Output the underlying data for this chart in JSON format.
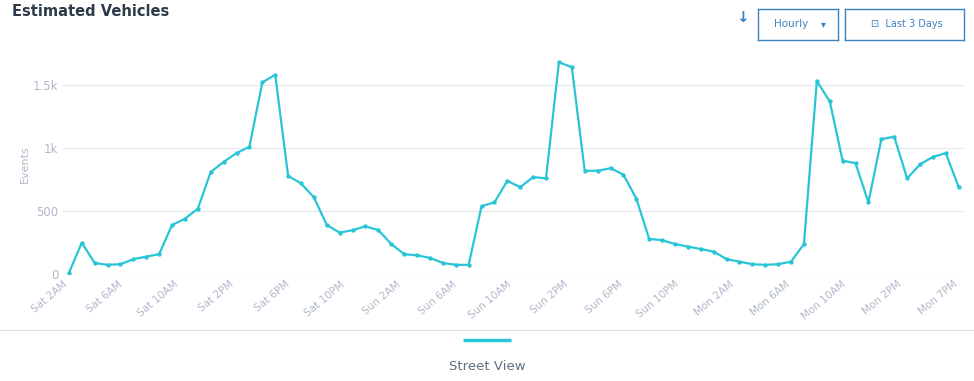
{
  "title": "Estimated Vehicles",
  "ylabel": "Events",
  "background_color": "#ffffff",
  "plot_bg_color": "#ffffff",
  "line_color": "#29c5d6",
  "marker_color": "#29c5d6",
  "grid_color": "#e5e8ef",
  "label_color": "#b0b8c8",
  "title_color": "#2d3a4a",
  "ylim": [
    0,
    1750
  ],
  "yticks": [
    0,
    500,
    1000,
    1500
  ],
  "ytick_labels": [
    "0",
    "500",
    "1k",
    "1.5k"
  ],
  "x_labels": [
    "Sat 2AM",
    "Sat 6AM",
    "Sat 10AM",
    "Sat 2PM",
    "Sat 6PM",
    "Sat 10PM",
    "Sun 2AM",
    "Sun 6AM",
    "Sun 10AM",
    "Sun 2PM",
    "Sun 6PM",
    "Sun 10PM",
    "Mon 2AM",
    "Mon 6AM",
    "Mon 10AM",
    "Mon 2PM",
    "Mon 7PM"
  ],
  "y_values": [
    10,
    250,
    90,
    75,
    80,
    120,
    140,
    160,
    390,
    440,
    520,
    810,
    890,
    960,
    1010,
    1520,
    1580,
    780,
    720,
    610,
    390,
    330,
    350,
    380,
    350,
    240,
    160,
    150,
    130,
    90,
    75,
    75,
    540,
    570,
    740,
    690,
    770,
    760,
    1680,
    1640,
    820,
    820,
    840,
    790,
    600,
    280,
    270,
    240,
    220,
    200,
    180,
    120,
    100,
    80,
    75,
    80,
    100,
    240,
    1530,
    1370,
    900,
    880,
    570,
    1070,
    1090,
    760,
    870,
    930,
    960,
    690
  ],
  "footer_text": "Street View",
  "footer_bg": "#e8ecf2",
  "btn_color": "#3b82c4"
}
